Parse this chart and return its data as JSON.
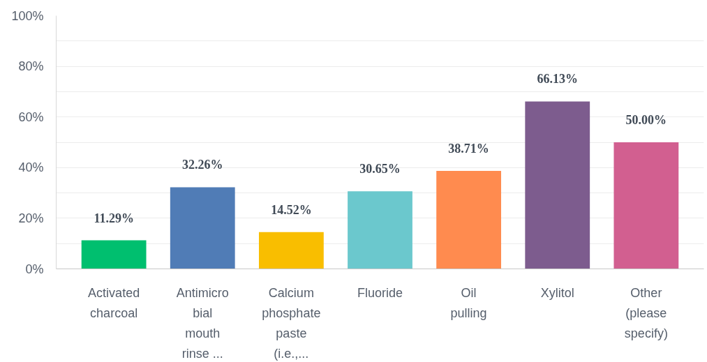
{
  "chart_data": {
    "type": "bar",
    "categories": [
      "Activated\ncharcoal",
      "Antimicro\nbial\nmouth\nrinse ...",
      "Calcium\nphosphate\npaste\n(i.e.,...",
      "Fluoride",
      "Oil\npulling",
      "Xylitol",
      "Other\n(please\nspecify)"
    ],
    "values": [
      11.29,
      32.26,
      14.52,
      30.65,
      38.71,
      66.13,
      50.0
    ],
    "colors": [
      "#00bf6f",
      "#507cb6",
      "#f9be00",
      "#6bc8cd",
      "#ff8b4f",
      "#7d5c8e",
      "#d25f90"
    ],
    "value_labels": [
      "11.29%",
      "32.26%",
      "14.52%",
      "30.65%",
      "38.71%",
      "66.13%",
      "50.00%"
    ],
    "ylim": [
      0,
      100
    ],
    "yticks": [
      {
        "value": 0,
        "label": "0%"
      },
      {
        "value": 10,
        "label": null
      },
      {
        "value": 20,
        "label": "20%"
      },
      {
        "value": 30,
        "label": null
      },
      {
        "value": 40,
        "label": "40%"
      },
      {
        "value": 50,
        "label": null
      },
      {
        "value": 60,
        "label": "60%"
      },
      {
        "value": 70,
        "label": null
      },
      {
        "value": 80,
        "label": "80%"
      },
      {
        "value": 90,
        "label": null
      },
      {
        "value": 100,
        "label": "100%"
      }
    ],
    "grid": "y"
  }
}
